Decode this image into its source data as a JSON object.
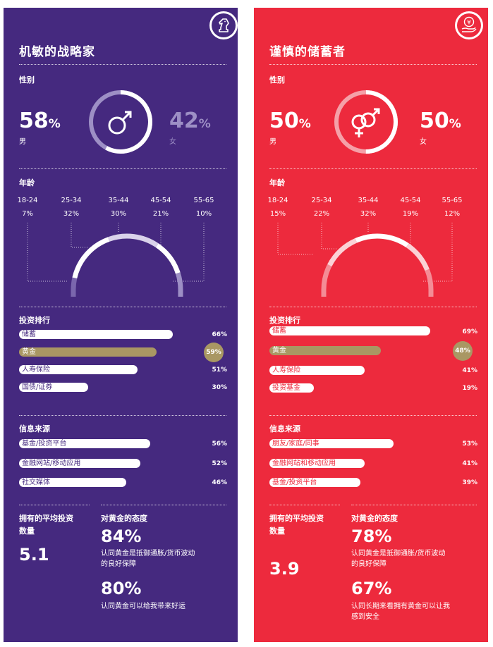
{
  "panels": [
    {
      "title": "机敏的战略家",
      "badge_icon": "chess-knight-icon",
      "gender": {
        "header": "性别",
        "left_pct": "58",
        "left_label": "男",
        "right_pct": "42",
        "right_label": "女",
        "unit": "%",
        "ring_fraction": 0.58
      },
      "age": {
        "header": "年龄",
        "groups": [
          {
            "label": "18-24",
            "pct": "7%"
          },
          {
            "label": "25-34",
            "pct": "32%"
          },
          {
            "label": "35-44",
            "pct": "30%"
          },
          {
            "label": "45-54",
            "pct": "21%"
          },
          {
            "label": "55-65",
            "pct": "10%"
          }
        ]
      },
      "investments": {
        "header": "投资排行",
        "items": [
          {
            "label": "储蓄",
            "pct": "66%",
            "value": 66
          },
          {
            "label": "黄金",
            "pct": "59%",
            "value": 59,
            "gold": true
          },
          {
            "label": "人寿保险",
            "pct": "51%",
            "value": 51
          },
          {
            "label": "国债/证券",
            "pct": "30%",
            "value": 30
          }
        ]
      },
      "sources": {
        "header": "信息来源",
        "items": [
          {
            "label": "基金/投资平台",
            "pct": "56%",
            "value": 56
          },
          {
            "label": "金融网站/移动应用",
            "pct": "52%",
            "value": 52
          },
          {
            "label": "社交媒体",
            "pct": "46%",
            "value": 46
          }
        ]
      },
      "avg": {
        "label_line1": "拥有的平均投资",
        "label_line2": "数量",
        "value": "5.1"
      },
      "attitude": {
        "header": "对黄金的态度",
        "pct1": "84%",
        "text1_line1": "认同黄金是抵御通胀/货币波动",
        "text1_line2": "的良好保障",
        "pct2": "80%",
        "text2_line1": "认同黄金可以给我带来好运",
        "text2_line2": ""
      }
    },
    {
      "title": "谨慎的储蓄者",
      "badge_icon": "yen-hand-icon",
      "gender": {
        "header": "性别",
        "left_pct": "50",
        "left_label": "男",
        "right_pct": "50",
        "right_label": "女",
        "unit": "%",
        "ring_fraction": 0.5
      },
      "age": {
        "header": "年龄",
        "groups": [
          {
            "label": "18-24",
            "pct": "15%"
          },
          {
            "label": "25-34",
            "pct": "22%"
          },
          {
            "label": "35-44",
            "pct": "32%"
          },
          {
            "label": "45-54",
            "pct": "19%"
          },
          {
            "label": "55-65",
            "pct": "12%"
          }
        ]
      },
      "investments": {
        "header": "投资排行",
        "items": [
          {
            "label": "储蓄",
            "pct": "69%",
            "value": 69
          },
          {
            "label": "黄金",
            "pct": "48%",
            "value": 48,
            "gold": true
          },
          {
            "label": "人寿保险",
            "pct": "41%",
            "value": 41
          },
          {
            "label": "投资基金",
            "pct": "19%",
            "value": 19
          }
        ]
      },
      "sources": {
        "header": "信息来源",
        "items": [
          {
            "label": "朋友/家庭/同事",
            "pct": "53%",
            "value": 53
          },
          {
            "label": "金融网站和移动应用",
            "pct": "41%",
            "value": 41
          },
          {
            "label": "基金/投资平台",
            "pct": "39%",
            "value": 39
          }
        ]
      },
      "avg": {
        "label_line1": "拥有的平均投资",
        "label_line2": "数量",
        "value": "3.9"
      },
      "attitude": {
        "header": "对黄金的态度",
        "pct1": "78%",
        "text1_line1": "认同黄金是抵御通胀/货币波动",
        "text1_line2": "的良好保障",
        "pct2": "67%",
        "text2_line1": "认同长期来看拥有黄金可以让我",
        "text2_line2": "感到安全"
      }
    }
  ],
  "colors": {
    "purple": "#45297f",
    "red": "#ed2a3d",
    "gold": "#a99763",
    "purple_light": "#9d8fc5",
    "red_light": "#f5a0a8"
  }
}
